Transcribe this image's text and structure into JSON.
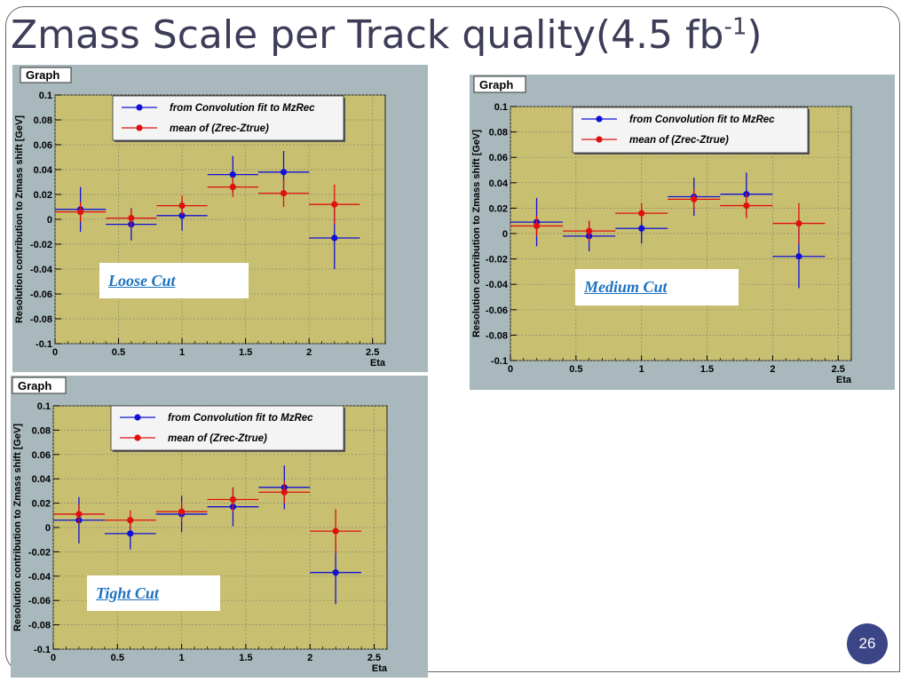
{
  "slide": {
    "title_main": "Zmass Scale per Track quality(4.5 fb",
    "title_sup": "-1",
    "title_close": ")",
    "page_number": "26"
  },
  "colors": {
    "panel_bg": "#a8b8bc",
    "plot_bg": "#c8c070",
    "blue": "#1010d8",
    "red": "#e01010"
  },
  "panels": [
    {
      "graph_label": "Graph",
      "cut_label": "Loose Cut"
    },
    {
      "graph_label": "Graph",
      "cut_label": "Medium Cut"
    },
    {
      "graph_label": "Graph",
      "cut_label": "Tight Cut"
    }
  ],
  "chart_data": [
    {
      "type": "scatter",
      "title": "Graph",
      "annotation": "Loose Cut",
      "xlabel": "Eta",
      "ylabel": "Resolution contribution to Zmass shift [GeV]",
      "xlim": [
        0,
        2.6
      ],
      "ylim": [
        -0.1,
        0.1
      ],
      "xticks": [
        "0",
        "0.5",
        "1",
        "1.5",
        "2",
        "2.5"
      ],
      "yticks": [
        "-0.1",
        "-0.08",
        "-0.06",
        "-0.04",
        "-0.02",
        "0",
        "0.02",
        "0.04",
        "0.06",
        "0.08",
        "0.1"
      ],
      "legend_position": "top-right",
      "grid": true,
      "series": [
        {
          "name": "from Convolution fit to MzRec",
          "points": [
            {
              "x": 0.2,
              "y": 0.008,
              "xerr": 0.2,
              "yerr": 0.018
            },
            {
              "x": 0.6,
              "y": -0.004,
              "xerr": 0.2,
              "yerr": 0.013
            },
            {
              "x": 1.0,
              "y": 0.003,
              "xerr": 0.2,
              "yerr": 0.012
            },
            {
              "x": 1.4,
              "y": 0.036,
              "xerr": 0.2,
              "yerr": 0.015
            },
            {
              "x": 1.8,
              "y": 0.038,
              "xerr": 0.2,
              "yerr": 0.017
            },
            {
              "x": 2.2,
              "y": -0.015,
              "xerr": 0.2,
              "yerr": 0.025
            }
          ]
        },
        {
          "name": "mean of (Zrec-Ztrue)",
          "points": [
            {
              "x": 0.2,
              "y": 0.006,
              "xerr": 0.2,
              "yerr": 0.008
            },
            {
              "x": 0.6,
              "y": 0.001,
              "xerr": 0.2,
              "yerr": 0.007
            },
            {
              "x": 1.0,
              "y": 0.011,
              "xerr": 0.2,
              "yerr": 0.008
            },
            {
              "x": 1.4,
              "y": 0.026,
              "xerr": 0.2,
              "yerr": 0.008
            },
            {
              "x": 1.8,
              "y": 0.021,
              "xerr": 0.2,
              "yerr": 0.011
            },
            {
              "x": 2.2,
              "y": 0.012,
              "xerr": 0.2,
              "yerr": 0.016
            }
          ]
        }
      ]
    },
    {
      "type": "scatter",
      "title": "Graph",
      "annotation": "Medium Cut",
      "xlabel": "Eta",
      "ylabel": "Resolution contribution to Zmass shift [GeV]",
      "xlim": [
        0,
        2.6
      ],
      "ylim": [
        -0.1,
        0.1
      ],
      "xticks": [
        "0",
        "0.5",
        "1",
        "1.5",
        "2",
        "2.5"
      ],
      "yticks": [
        "-0.1",
        "-0.08",
        "-0.06",
        "-0.04",
        "-0.02",
        "0",
        "0.02",
        "0.04",
        "0.06",
        "0.08",
        "0.1"
      ],
      "legend_position": "top-right",
      "grid": true,
      "series": [
        {
          "name": "from Convolution fit to MzRec",
          "points": [
            {
              "x": 0.2,
              "y": 0.009,
              "xerr": 0.2,
              "yerr": 0.019
            },
            {
              "x": 0.6,
              "y": -0.002,
              "xerr": 0.2,
              "yerr": 0.012
            },
            {
              "x": 1.0,
              "y": 0.004,
              "xerr": 0.2,
              "yerr": 0.012
            },
            {
              "x": 1.4,
              "y": 0.029,
              "xerr": 0.2,
              "yerr": 0.015
            },
            {
              "x": 1.8,
              "y": 0.031,
              "xerr": 0.2,
              "yerr": 0.017
            },
            {
              "x": 2.2,
              "y": -0.018,
              "xerr": 0.2,
              "yerr": 0.025
            }
          ]
        },
        {
          "name": "mean of (Zrec-Ztrue)",
          "points": [
            {
              "x": 0.2,
              "y": 0.006,
              "xerr": 0.2,
              "yerr": 0.008
            },
            {
              "x": 0.6,
              "y": 0.002,
              "xerr": 0.2,
              "yerr": 0.008
            },
            {
              "x": 1.0,
              "y": 0.016,
              "xerr": 0.2,
              "yerr": 0.008
            },
            {
              "x": 1.4,
              "y": 0.027,
              "xerr": 0.2,
              "yerr": 0.008
            },
            {
              "x": 1.8,
              "y": 0.022,
              "xerr": 0.2,
              "yerr": 0.01
            },
            {
              "x": 2.2,
              "y": 0.008,
              "xerr": 0.2,
              "yerr": 0.016
            }
          ]
        }
      ]
    },
    {
      "type": "scatter",
      "title": "Graph",
      "annotation": "Tight Cut",
      "xlabel": "Eta",
      "ylabel": "Resolution contribution to Zmass shift [GeV]",
      "xlim": [
        0,
        2.6
      ],
      "ylim": [
        -0.1,
        0.1
      ],
      "xticks": [
        "0",
        "0.5",
        "1",
        "1.5",
        "2",
        "2.5"
      ],
      "yticks": [
        "-0.1",
        "-0.08",
        "-0.06",
        "-0.04",
        "-0.02",
        "0",
        "0.02",
        "0.04",
        "0.06",
        "0.08",
        "0.1"
      ],
      "legend_position": "top-right",
      "grid": true,
      "series": [
        {
          "name": "from Convolution fit to MzRec",
          "points": [
            {
              "x": 0.2,
              "y": 0.006,
              "xerr": 0.2,
              "yerr": 0.019
            },
            {
              "x": 0.6,
              "y": -0.005,
              "xerr": 0.2,
              "yerr": 0.013
            },
            {
              "x": 1.0,
              "y": 0.011,
              "xerr": 0.2,
              "yerr": 0.015
            },
            {
              "x": 1.4,
              "y": 0.017,
              "xerr": 0.2,
              "yerr": 0.016
            },
            {
              "x": 1.8,
              "y": 0.033,
              "xerr": 0.2,
              "yerr": 0.018
            },
            {
              "x": 2.2,
              "y": -0.037,
              "xerr": 0.2,
              "yerr": 0.026
            }
          ]
        },
        {
          "name": "mean of (Zrec-Ztrue)",
          "points": [
            {
              "x": 0.2,
              "y": 0.011,
              "xerr": 0.2,
              "yerr": 0.008
            },
            {
              "x": 0.6,
              "y": 0.006,
              "xerr": 0.2,
              "yerr": 0.008
            },
            {
              "x": 1.0,
              "y": 0.013,
              "xerr": 0.2,
              "yerr": 0.008
            },
            {
              "x": 1.4,
              "y": 0.023,
              "xerr": 0.2,
              "yerr": 0.01
            },
            {
              "x": 1.8,
              "y": 0.029,
              "xerr": 0.2,
              "yerr": 0.009
            },
            {
              "x": 2.2,
              "y": -0.003,
              "xerr": 0.2,
              "yerr": 0.018
            }
          ]
        }
      ]
    }
  ]
}
